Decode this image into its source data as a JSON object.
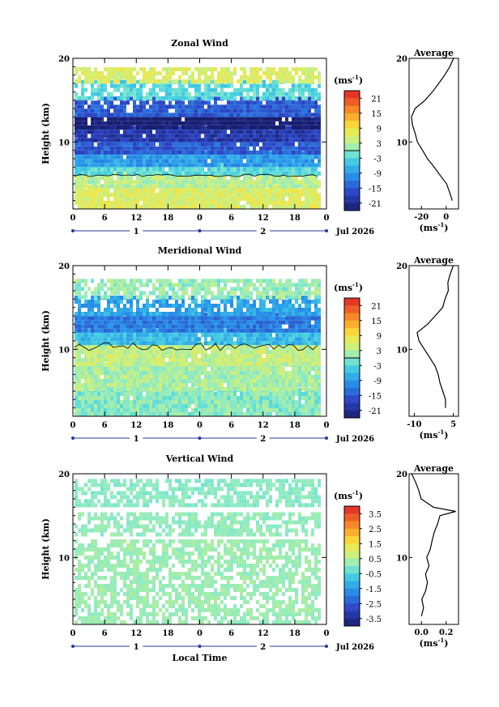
{
  "chart_data": [
    {
      "type": "heatmap",
      "title": "Zonal Wind",
      "ylabel": "Height (km)",
      "ylim": [
        2,
        20
      ],
      "yticks": [
        "10",
        "20"
      ],
      "xticks": [
        "0",
        "6",
        "12",
        "18",
        "0",
        "6",
        "12",
        "18",
        "0"
      ],
      "days": [
        "1",
        "2"
      ],
      "month_label": "Jul 2026",
      "colorbar": {
        "unit_label": "(ms",
        "unit_exp": "-1",
        "unit_close": ")",
        "ticks": [
          "21",
          "15",
          "9",
          "3",
          "-3",
          "-9",
          "-15",
          "-21"
        ],
        "range": [
          -24,
          24
        ],
        "zero_contour": true
      },
      "profile": {
        "title": "Average",
        "xticks": [
          "-20",
          "0"
        ],
        "xlabel": "(ms",
        "xlabel_exp": "-1",
        "xlabel_close": ")",
        "xlim": [
          -30,
          10
        ],
        "yticks": [
          "10",
          "20"
        ],
        "heights": [
          3,
          4,
          5,
          6,
          7,
          8,
          9,
          10,
          11,
          12,
          13,
          14,
          15,
          16,
          17,
          18,
          19,
          20
        ],
        "values": [
          5,
          3,
          0,
          -5,
          -10,
          -15,
          -19,
          -23,
          -25,
          -27,
          -28,
          -25,
          -17,
          -11,
          -6,
          -1,
          3,
          6
        ]
      },
      "layers": [
        {
          "zmin": 2,
          "zmax": 4.5,
          "v": 6
        },
        {
          "zmin": 4.5,
          "zmax": 6,
          "v": 3
        },
        {
          "zmin": 6,
          "zmax": 7,
          "v": -3
        },
        {
          "zmin": 7,
          "zmax": 8.5,
          "v": -9
        },
        {
          "zmin": 8.5,
          "zmax": 10,
          "v": -15
        },
        {
          "zmin": 10,
          "zmax": 11.5,
          "v": -19
        },
        {
          "zmin": 11.5,
          "zmax": 13,
          "v": -24
        },
        {
          "zmin": 13,
          "zmax": 15,
          "v": -15
        },
        {
          "zmin": 15,
          "zmax": 17,
          "v": -3
        },
        {
          "zmin": 17,
          "zmax": 18.5,
          "v": 6
        }
      ]
    },
    {
      "type": "heatmap",
      "title": "Meridional Wind",
      "ylabel": "Height (km)",
      "ylim": [
        2,
        20
      ],
      "yticks": [
        "10",
        "20"
      ],
      "xticks": [
        "0",
        "6",
        "12",
        "18",
        "0",
        "6",
        "12",
        "18",
        "0"
      ],
      "days": [
        "1",
        "2"
      ],
      "month_label": "Jul 2026",
      "colorbar": {
        "unit_label": "(ms",
        "unit_exp": "-1",
        "unit_close": ")",
        "ticks": [
          "21",
          "15",
          "9",
          "3",
          "-3",
          "-9",
          "-15",
          "-21"
        ],
        "range": [
          -24,
          24
        ],
        "zero_contour": true
      },
      "profile": {
        "title": "Average",
        "xticks": [
          "-10",
          "5"
        ],
        "xlabel": "(ms",
        "xlabel_exp": "-1",
        "xlabel_close": ")",
        "xlim": [
          -12,
          7
        ],
        "yticks": [
          "10",
          "20"
        ],
        "heights": [
          3,
          4,
          5,
          6,
          7,
          8,
          9,
          10,
          11,
          12,
          13,
          14,
          15,
          16,
          17,
          18,
          19,
          20
        ],
        "values": [
          2,
          2,
          1,
          0,
          -1,
          -2,
          -4,
          -6,
          -8,
          -9,
          -5,
          -2,
          1,
          2,
          3,
          3,
          4,
          5
        ]
      },
      "layers": [
        {
          "zmin": 2,
          "zmax": 5,
          "v": 0
        },
        {
          "zmin": 5,
          "zmax": 8,
          "v": 2
        },
        {
          "zmin": 8,
          "zmax": 10.5,
          "v": 4
        },
        {
          "zmin": 10.5,
          "zmax": 12,
          "v": -6
        },
        {
          "zmin": 12,
          "zmax": 14,
          "v": -12
        },
        {
          "zmin": 14,
          "zmax": 16,
          "v": -8
        },
        {
          "zmin": 16,
          "zmax": 18,
          "v": 1
        }
      ]
    },
    {
      "type": "heatmap",
      "title": "Vertical Wind",
      "ylabel": "Height (km)",
      "xlabel": "Local Time",
      "ylim": [
        2,
        20
      ],
      "yticks": [
        "10",
        "20"
      ],
      "xticks": [
        "0",
        "6",
        "12",
        "18",
        "0",
        "6",
        "12",
        "18",
        "0"
      ],
      "days": [
        "1",
        "2"
      ],
      "month_label": "Jul 2026",
      "colorbar": {
        "unit_label": "(ms",
        "unit_exp": "-1",
        "unit_close": ")",
        "ticks": [
          "3.5",
          "2.5",
          "1.5",
          "0.5",
          "-0.5",
          "-1.5",
          "-2.5",
          "-3.5"
        ],
        "range": [
          -4,
          4
        ],
        "zero_contour": false
      },
      "profile": {
        "title": "Average",
        "xticks": [
          "0.0",
          "0.2"
        ],
        "xlabel": "(ms",
        "xlabel_exp": "-1",
        "xlabel_close": ")",
        "xlim": [
          -0.1,
          0.3
        ],
        "yticks": [
          "10",
          "20"
        ],
        "heights": [
          3,
          4,
          5,
          6,
          7,
          8,
          9,
          10,
          11,
          12,
          13,
          14,
          15,
          15.5,
          16,
          17,
          18,
          19,
          20
        ],
        "values": [
          0.0,
          0.02,
          0.0,
          0.03,
          0.05,
          0.03,
          0.06,
          0.04,
          0.07,
          0.09,
          0.1,
          0.13,
          0.15,
          0.28,
          0.1,
          0.0,
          -0.02,
          -0.05,
          -0.08
        ]
      },
      "layers": [
        {
          "zmin": 2,
          "zmax": 12,
          "v": 0.2
        },
        {
          "zmin": 12.5,
          "zmax": 15,
          "v": 0.1
        },
        {
          "zmin": 16,
          "zmax": 19,
          "v": 0.0
        }
      ]
    }
  ]
}
